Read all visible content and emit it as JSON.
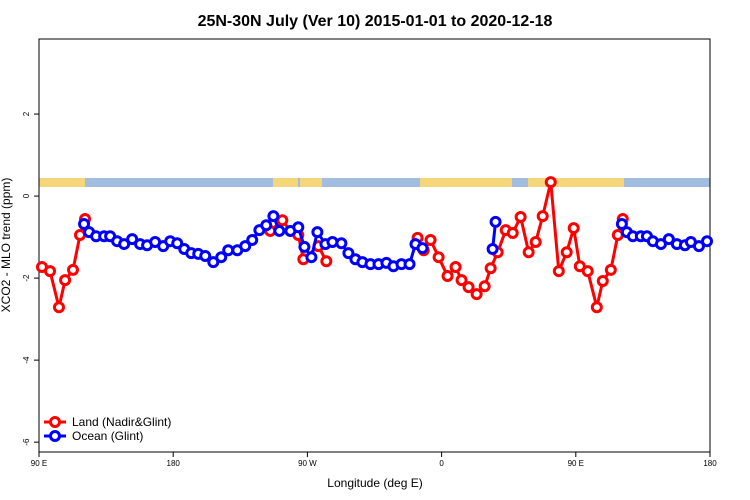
{
  "chart_data": {
    "type": "line",
    "title": "25N-30N July (Ver 10)   2015-01-01 to 2020-12-18",
    "x_label": "Longitude (deg E)",
    "y_label": "XCO2 - MLO trend (ppm)",
    "xlim": [
      90,
      540
    ],
    "xticks": [
      {
        "value": 90,
        "label": "90 E"
      },
      {
        "value": 180,
        "label": "180"
      },
      {
        "value": 270,
        "label": "90 W"
      },
      {
        "value": 360,
        "label": "0"
      },
      {
        "value": 450,
        "label": "90 E"
      },
      {
        "value": 540,
        "label": "180"
      }
    ],
    "ylim": [
      -6.24,
      3.83
    ],
    "yticks": [
      -6,
      -4,
      -2,
      0,
      2
    ],
    "legend": "bottomleft",
    "series": [
      {
        "name": "Land (Nadir&Glint)",
        "color": "#ff0000",
        "x": [
          92,
          97.4,
          103.4,
          107.5,
          112.8,
          117.5,
          120.9,
          null,
          245.1,
          253.2,
          258.6,
          263.9,
          267.3,
          277.4,
          282.7,
          null,
          343.9,
          348,
          352.6,
          358,
          364,
          369.4,
          373.4,
          378.1,
          383.5,
          388.9,
          392.9,
          397.6,
          403,
          407.7,
          413,
          418.4,
          423.1,
          427.8,
          433.2,
          438.6,
          443.9,
          448.6,
          452.7,
          458,
          464.1,
          468.1,
          473.5,
          478.2,
          481.5
        ],
        "values": [
          -1.73,
          -1.83,
          -2.71,
          -2.05,
          -1.8,
          -0.95,
          -0.56,
          null,
          -0.85,
          -0.59,
          -0.85,
          -0.95,
          -1.54,
          -1.22,
          -1.59,
          null,
          -1.02,
          -1.32,
          -1.07,
          -1.49,
          -1.95,
          -1.73,
          -2.05,
          -2.22,
          -2.39,
          -2.2,
          -1.76,
          -1.37,
          -0.83,
          -0.9,
          -0.51,
          -1.37,
          -1.12,
          -0.49,
          0.34,
          -1.83,
          -1.37,
          -0.78,
          -1.71,
          -1.83,
          -2.71,
          -2.07,
          -1.8,
          -0.95,
          -0.56
        ]
      },
      {
        "name": "Ocean (Glint)",
        "color": "#0000ff",
        "x": [
          120.2,
          123.6,
          128.3,
          133.7,
          137.7,
          142.4,
          147.1,
          152.5,
          157.8,
          162.5,
          167.9,
          173.3,
          178,
          182.7,
          187.4,
          192.1,
          196.8,
          201.5,
          206.9,
          212.2,
          216.9,
          223,
          228.3,
          233,
          237.8,
          242.4,
          247.2,
          251.2,
          258.6,
          263.9,
          268,
          272.7,
          276.7,
          282.1,
          286.8,
          292.8,
          297.5,
          302.2,
          306.9,
          312.3,
          317.7,
          323,
          327.7,
          333.1,
          338.5,
          342.5,
          347.2,
          null,
          394.2,
          396.2,
          null,
          480.9,
          484.2,
          488.3,
          493.6,
          497.7,
          501.7,
          507.1,
          512.4,
          517.8,
          523.2,
          527.2,
          532.6,
          538
        ],
        "values": [
          -0.68,
          -0.88,
          -0.98,
          -0.98,
          -0.98,
          -1.1,
          -1.17,
          -1.05,
          -1.17,
          -1.2,
          -1.12,
          -1.22,
          -1.1,
          -1.15,
          -1.29,
          -1.39,
          -1.41,
          -1.46,
          -1.61,
          -1.49,
          -1.32,
          -1.32,
          -1.22,
          -1.07,
          -0.83,
          -0.71,
          -0.49,
          -0.85,
          -0.85,
          -0.76,
          -1.24,
          -1.49,
          -0.88,
          -1.17,
          -1.12,
          -1.15,
          -1.39,
          -1.54,
          -1.61,
          -1.66,
          -1.66,
          -1.63,
          -1.71,
          -1.66,
          -1.66,
          -1.17,
          -1.27,
          null,
          -1.29,
          -0.63,
          null,
          -0.68,
          -0.88,
          -0.98,
          -0.98,
          -0.98,
          -1.1,
          -1.17,
          -1.05,
          -1.17,
          -1.2,
          -1.12,
          -1.22,
          -1.1
        ]
      }
    ]
  }
}
